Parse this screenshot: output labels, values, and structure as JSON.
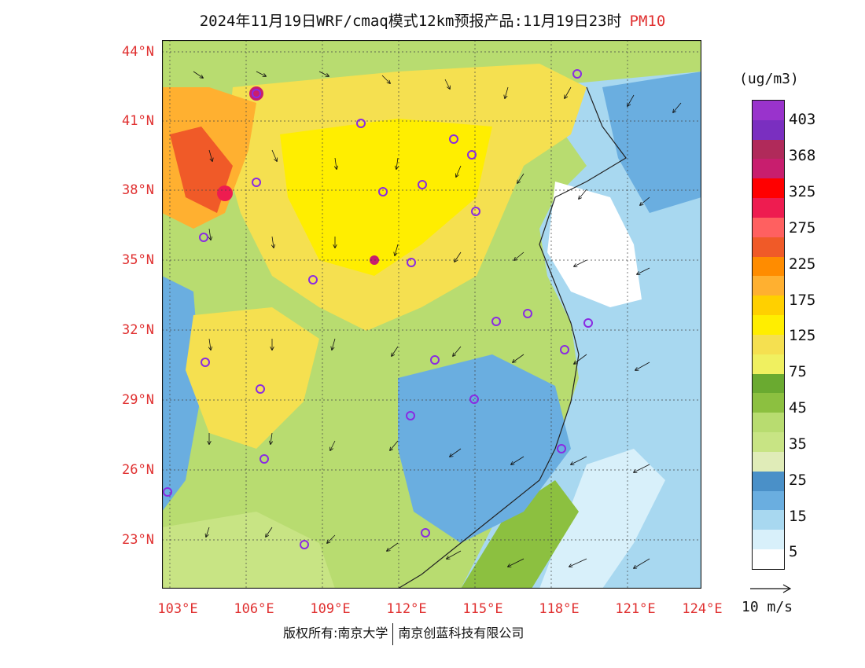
{
  "title": {
    "main": "2024年11月19日WRF/cmaq模式12km预报产品:11月19日23时",
    "pollutant": "PM10"
  },
  "map": {
    "lat_labels": [
      "44°N",
      "41°N",
      "38°N",
      "35°N",
      "32°N",
      "29°N",
      "26°N",
      "23°N"
    ],
    "lon_labels": [
      "103°E",
      "106°E",
      "109°E",
      "112°E",
      "115°E",
      "118°E",
      "121°E",
      "124°E"
    ],
    "lat_range": [
      21,
      44.5
    ],
    "lon_range": [
      102.8,
      124
    ]
  },
  "colorbar": {
    "units": "(ug/m3)",
    "labels": [
      "403",
      "368",
      "325",
      "275",
      "225",
      "175",
      "125",
      "75",
      "45",
      "35",
      "25",
      "15",
      "5"
    ],
    "colors": [
      "#9933cc",
      "#7a2fc0",
      "#b02a5a",
      "#c81e6e",
      "#ff0000",
      "#ee1c50",
      "#ff6060",
      "#f05a28",
      "#ff8c00",
      "#ffb030",
      "#ffd000",
      "#ffee00",
      "#f5e050",
      "#f0f060",
      "#6aaa30",
      "#8cc040",
      "#b8dc70",
      "#c8e484",
      "#e0ecb8",
      "#4a90c8",
      "#6aaee0",
      "#a8d8f0",
      "#d8f0fa",
      "#ffffff"
    ]
  },
  "wind_reference": "10 m/s",
  "footer": {
    "left": "版权所有:南京大学",
    "right": "南京创蓝科技有限公司"
  }
}
